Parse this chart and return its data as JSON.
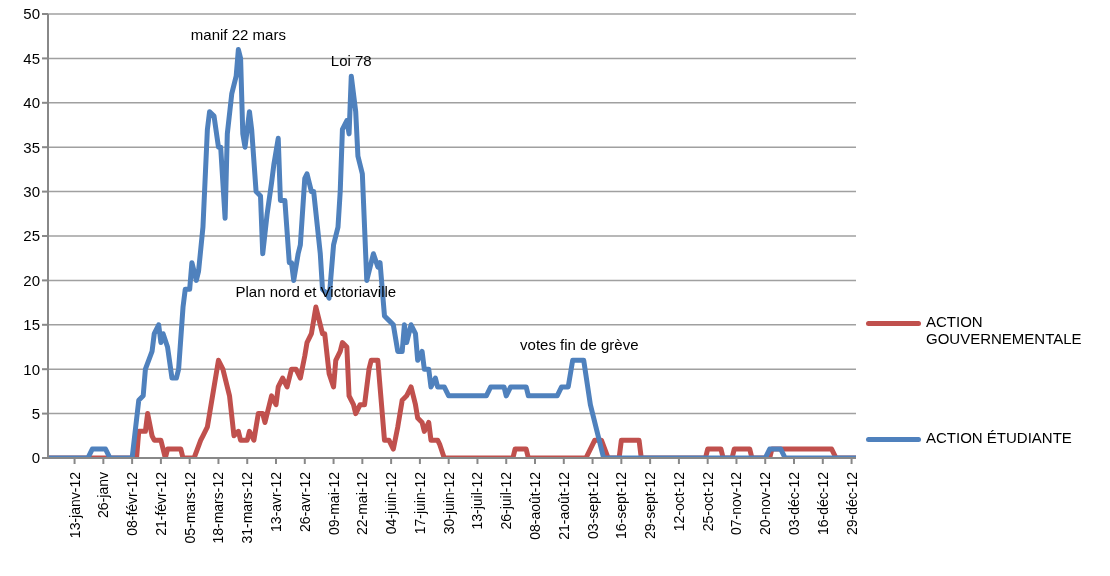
{
  "chart_data": {
    "type": "line",
    "series": [
      {
        "name": "ACTION GOUVERNEMENTALE",
        "color": "#c0504d",
        "x": [
          "--01-01",
          "--02-10",
          "--02-11",
          "--02-14",
          "--02-15",
          "--02-17",
          "--02-18",
          "--02-21",
          "--02-23",
          "--02-24",
          "--03-01",
          "--03-02",
          "--03-07",
          "--03-10",
          "--03-11",
          "--03-13",
          "--03-15",
          "--03-18",
          "--03-20",
          "--03-23",
          "--03-25",
          "--03-27",
          "--03-28",
          "--03-31",
          "--04-01",
          "--04-03",
          "--04-05",
          "--04-07",
          "--04-08",
          "--04-11",
          "--04-13",
          "--04-14",
          "--04-16",
          "--04-18",
          "--04-20",
          "--04-22",
          "--04-24",
          "--04-26",
          "--04-27",
          "--04-29",
          "--05-01",
          "--05-04",
          "--05-05",
          "--05-07",
          "--05-09",
          "--05-10",
          "--05-12",
          "--05-13",
          "--05-15",
          "--05-16",
          "--05-18",
          "--05-19",
          "--05-21",
          "--05-23",
          "--05-25",
          "--05-26",
          "--05-29",
          "--05-30",
          "--06-01",
          "--06-03",
          "--06-05",
          "--06-07",
          "--06-09",
          "--06-11",
          "--06-13",
          "--06-15",
          "--06-16",
          "--06-18",
          "--06-19",
          "--06-21",
          "--06-22",
          "--06-25",
          "--06-26",
          "--06-28",
          "--07-29",
          "--07-30",
          "--08-04",
          "--08-05",
          "--08-31",
          "--09-02",
          "--09-04",
          "--09-07",
          "--09-10",
          "--09-15",
          "--09-16",
          "--09-24",
          "--09-25",
          "--10-24",
          "--10-25",
          "--10-31",
          "--11-01",
          "--11-05",
          "--11-06",
          "--11-13",
          "--11-14",
          "--11-22",
          "--11-23",
          "--12-20",
          "--12-22",
          "--12-31"
        ],
        "values": [
          0,
          0,
          3,
          3,
          5,
          2.5,
          2,
          2,
          0,
          1,
          1,
          0,
          0,
          2,
          2.5,
          3.5,
          6.5,
          11,
          10,
          7,
          2.5,
          3,
          2,
          2,
          3,
          2,
          5,
          5,
          4,
          7,
          6,
          8,
          9,
          8,
          10,
          10,
          9,
          11.5,
          13,
          14,
          17,
          14,
          14,
          9.5,
          8,
          11,
          12,
          13,
          12.5,
          7,
          6,
          5,
          6,
          6,
          10,
          11,
          11,
          8,
          2,
          2,
          1,
          3.5,
          6.5,
          7,
          8,
          6,
          4.5,
          4,
          3,
          4,
          2,
          2,
          1.5,
          0,
          0,
          1,
          1,
          0,
          0,
          1,
          2,
          2,
          0,
          0,
          2,
          2,
          0,
          0,
          1,
          1,
          0,
          0,
          1,
          1,
          0,
          0,
          1,
          1,
          0,
          0
        ]
      },
      {
        "name": "ACTION ÉTUDIANTE",
        "color": "#4f81bd",
        "x": [
          "--01-01",
          "--01-19",
          "--01-21",
          "--01-27",
          "--01-29",
          "--02-08",
          "--02-11",
          "--02-13",
          "--02-14",
          "--02-17",
          "--02-18",
          "--02-20",
          "--02-21",
          "--02-22",
          "--02-24",
          "--02-26",
          "--02-28",
          "--02-29",
          "--03-02",
          "--03-03",
          "--03-05",
          "--03-06",
          "--03-08",
          "--03-09",
          "--03-11",
          "--03-13",
          "--03-14",
          "--03-16",
          "--03-18",
          "--03-19",
          "--03-21",
          "--03-22",
          "--03-24",
          "--03-26",
          "--03-27",
          "--03-28",
          "--03-29",
          "--03-30",
          "--04-01",
          "--04-02",
          "--04-04",
          "--04-06",
          "--04-07",
          "--04-09",
          "--04-11",
          "--04-12",
          "--04-14",
          "--04-15",
          "--04-17",
          "--04-19",
          "--04-20",
          "--04-21",
          "--04-23",
          "--04-24",
          "--04-26",
          "--04-27",
          "--04-29",
          "--04-30",
          "--05-03",
          "--05-04",
          "--05-06",
          "--05-07",
          "--05-09",
          "--05-11",
          "--05-12",
          "--05-13",
          "--05-15",
          "--05-16",
          "--05-17",
          "--05-19",
          "--05-20",
          "--05-22",
          "--05-24",
          "--05-26",
          "--05-27",
          "--05-29",
          "--05-30",
          "--06-01",
          "--06-03",
          "--06-05",
          "--06-07",
          "--06-09",
          "--06-10",
          "--06-11",
          "--06-13",
          "--06-15",
          "--06-16",
          "--06-18",
          "--06-19",
          "--06-21",
          "--06-22",
          "--06-24",
          "--06-25",
          "--06-28",
          "--06-30",
          "--07-17",
          "--07-19",
          "--07-25",
          "--07-26",
          "--07-28",
          "--08-04",
          "--08-05",
          "--08-18",
          "--08-20",
          "--08-23",
          "--08-25",
          "--08-30",
          "--09-02",
          "--09-08",
          "--11-20",
          "--11-22",
          "--11-27",
          "--11-29",
          "--12-31"
        ],
        "values": [
          0,
          0,
          1,
          1,
          0,
          0,
          6.5,
          7,
          10,
          12,
          14,
          15,
          13,
          14,
          12.5,
          9,
          9,
          10,
          17,
          19,
          19,
          22,
          20,
          21,
          26,
          37,
          39,
          38.5,
          35,
          35,
          27,
          36.5,
          41,
          43,
          46,
          45,
          36.5,
          35,
          39,
          37,
          30,
          29.5,
          23,
          27.5,
          31,
          33,
          36,
          29,
          29,
          22,
          22,
          20,
          23,
          24,
          31.5,
          32,
          30,
          30,
          23,
          19,
          18.5,
          18,
          24,
          26,
          30,
          37,
          38,
          36.5,
          43,
          39,
          34,
          32,
          20,
          22,
          23,
          21.5,
          22,
          16,
          15.5,
          15,
          12,
          12,
          15,
          13,
          15,
          14,
          11,
          12,
          10,
          10,
          8,
          9,
          8,
          8,
          7,
          7,
          8,
          8,
          7,
          8,
          8,
          7,
          7,
          8,
          8,
          11,
          11,
          6,
          0,
          0,
          1,
          1,
          0,
          0
        ]
      }
    ],
    "xlim": [
      "--01-01",
      "--12-31"
    ],
    "xticks": [
      {
        "value": "--01-13",
        "label": "13-janv-12"
      },
      {
        "value": "--01-26",
        "label": "26-janv"
      },
      {
        "value": "--02-08",
        "label": "08-févr-12"
      },
      {
        "value": "--02-21",
        "label": "21-févr-12"
      },
      {
        "value": "--03-05",
        "label": "05-mars-12"
      },
      {
        "value": "--03-18",
        "label": "18-mars-12"
      },
      {
        "value": "--03-31",
        "label": "31-mars-12"
      },
      {
        "value": "--04-13",
        "label": "13-avr-12"
      },
      {
        "value": "--04-26",
        "label": "26-avr-12"
      },
      {
        "value": "--05-09",
        "label": "09-mai-12"
      },
      {
        "value": "--05-22",
        "label": "22-mai-12"
      },
      {
        "value": "--06-04",
        "label": "04-juin-12"
      },
      {
        "value": "--06-17",
        "label": "17-juin-12"
      },
      {
        "value": "--06-30",
        "label": "30-juin-12"
      },
      {
        "value": "--07-13",
        "label": "13-juil-12"
      },
      {
        "value": "--07-26",
        "label": "26-juil-12"
      },
      {
        "value": "--08-08",
        "label": "08-août-12"
      },
      {
        "value": "--08-21",
        "label": "21-août-12"
      },
      {
        "value": "--09-03",
        "label": "03-sept-12"
      },
      {
        "value": "--09-16",
        "label": "16-sept-12"
      },
      {
        "value": "--09-29",
        "label": "29-sept-12"
      },
      {
        "value": "--10-12",
        "label": "12-oct-12"
      },
      {
        "value": "--10-25",
        "label": "25-oct-12"
      },
      {
        "value": "--11-07",
        "label": "07-nov-12"
      },
      {
        "value": "--11-20",
        "label": "20-nov-12"
      },
      {
        "value": "--12-03",
        "label": "03-déc-12"
      },
      {
        "value": "--12-16",
        "label": "16-déc-12"
      },
      {
        "value": "--12-29",
        "label": "29-déc-12"
      }
    ],
    "ylim": [
      0,
      50
    ],
    "yticks": [
      0,
      5,
      10,
      15,
      20,
      25,
      30,
      35,
      40,
      45,
      50
    ],
    "grid": "y",
    "legend": "right",
    "marker": "none",
    "line_style": "solid",
    "annotations": [
      {
        "text": "manif 22 mars",
        "x": "--03-27",
        "y": 46
      },
      {
        "text": "Loi 78",
        "x": "--05-17",
        "y": 43
      },
      {
        "text": "Plan nord et Victoriaville",
        "x": "--05-01",
        "y": 17
      },
      {
        "text": "votes fin de grève",
        "x": "--08-28",
        "y": 11
      }
    ]
  }
}
